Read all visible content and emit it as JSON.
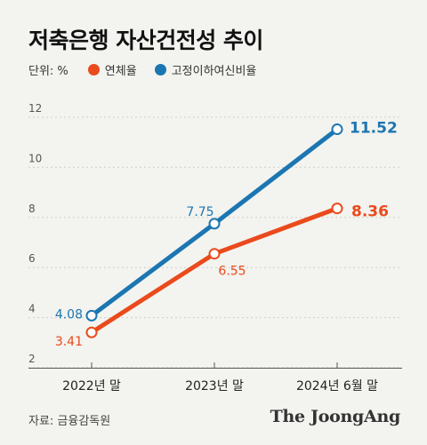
{
  "title": "저축은행 자산건전성 추이",
  "legend": {
    "unit": "단위: %",
    "items": [
      {
        "label": "연체율",
        "color": "#ea4a1c"
      },
      {
        "label": "고정이하여신비율",
        "color": "#1b76b2"
      }
    ]
  },
  "source": "자료: 금융감독원",
  "brand": "The JoongAng",
  "chart_data": {
    "type": "line",
    "categories": [
      "2022년 말",
      "2023년 말",
      "2024년 6월 말"
    ],
    "y_ticks": [
      2,
      4,
      6,
      8,
      10,
      12
    ],
    "ylim": [
      2,
      12
    ],
    "grid": true,
    "series": [
      {
        "name": "고정이하여신비율",
        "color": "#1b76b2",
        "values": [
          4.08,
          7.75,
          11.52
        ],
        "labels": [
          "4.08",
          "7.75",
          "11.52"
        ]
      },
      {
        "name": "연체율",
        "color": "#ea4a1c",
        "values": [
          3.41,
          6.55,
          8.36
        ],
        "labels": [
          "3.41",
          "6.55",
          "8.36"
        ]
      }
    ]
  }
}
